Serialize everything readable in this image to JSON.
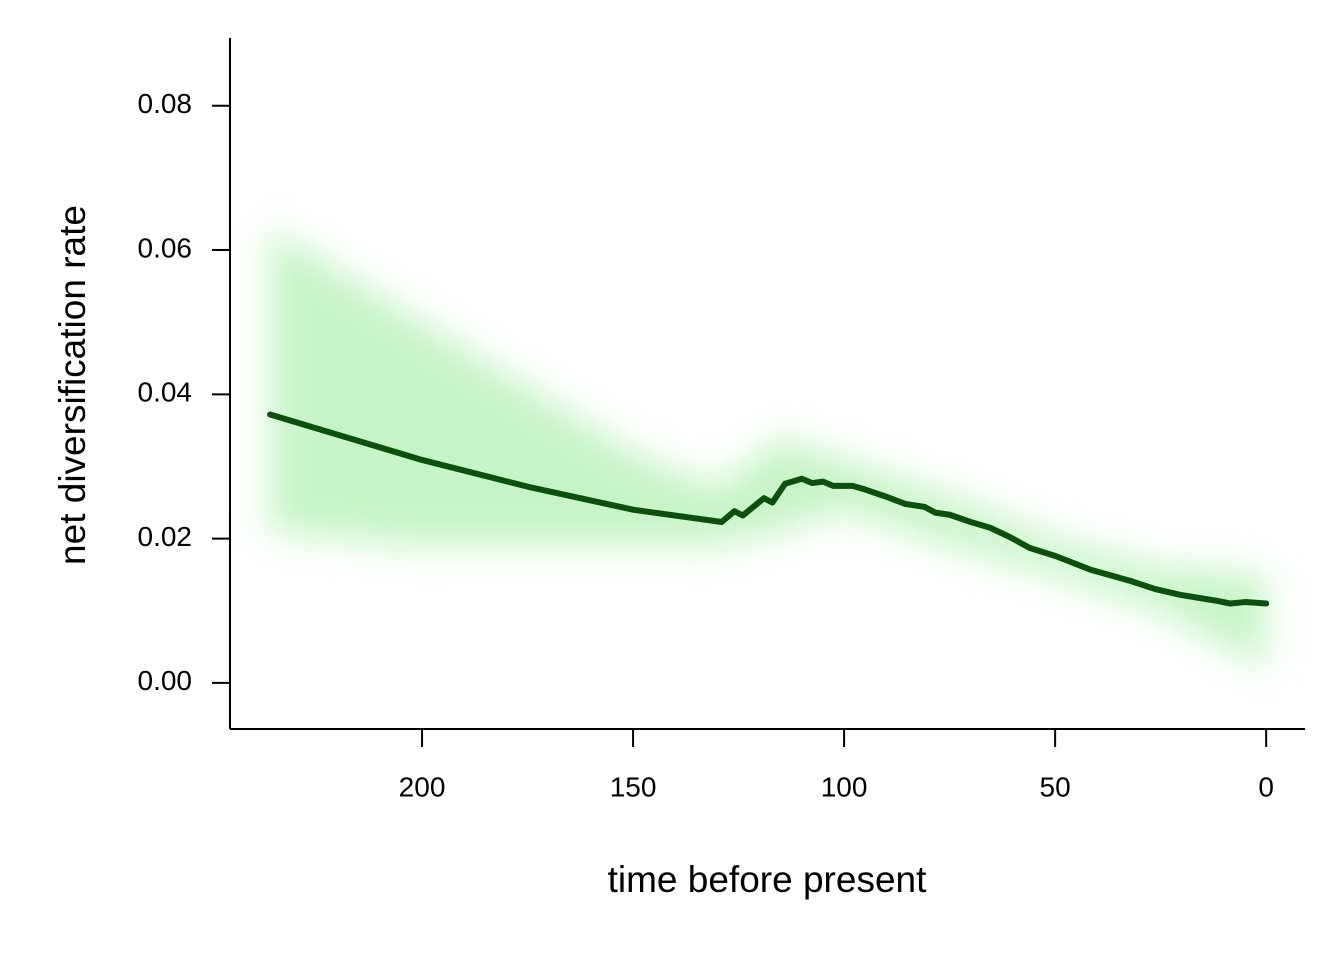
{
  "chart_data": {
    "type": "line",
    "xlabel": "time before present",
    "ylabel": "net diversification rate",
    "x": [
      236,
      200,
      175,
      150,
      129,
      126,
      124,
      119,
      117,
      114,
      110,
      107.6,
      105,
      102.6,
      98,
      95,
      90,
      85.5,
      81,
      78.4,
      75,
      70,
      65.4,
      60.7,
      56,
      50,
      41.7,
      32,
      26.3,
      20.4,
      12,
      8.5,
      5,
      0
    ],
    "values": [
      0.0372,
      0.0309,
      0.0272,
      0.024,
      0.0223,
      0.0238,
      0.0232,
      0.0256,
      0.025,
      0.0276,
      0.0283,
      0.0277,
      0.0279,
      0.0273,
      0.0273,
      0.0268,
      0.0258,
      0.0248,
      0.0244,
      0.0236,
      0.0233,
      0.0223,
      0.0215,
      0.0202,
      0.0187,
      0.0176,
      0.0157,
      0.0141,
      0.013,
      0.0122,
      0.0114,
      0.011,
      0.0112,
      0.011
    ],
    "color": "#0b500b",
    "band": {
      "x": [
        236,
        200,
        150,
        130,
        115,
        100,
        75,
        50,
        25,
        0
      ],
      "lower": [
        0.021,
        0.019,
        0.019,
        0.019,
        0.021,
        0.024,
        0.019,
        0.015,
        0.01,
        0.002
      ],
      "upper": [
        0.063,
        0.05,
        0.032,
        0.027,
        0.034,
        0.031,
        0.026,
        0.02,
        0.016,
        0.015
      ],
      "color": "#5fe05f"
    },
    "xlim": [
      245.5,
      -9.2
    ],
    "ylim": [
      -0.0064,
      0.0894
    ],
    "xticks": [
      200,
      150,
      100,
      50,
      0
    ],
    "yticks": [
      {
        "value": 0,
        "label": "0.00"
      },
      0.02,
      0.04,
      0.06,
      0.08
    ]
  }
}
